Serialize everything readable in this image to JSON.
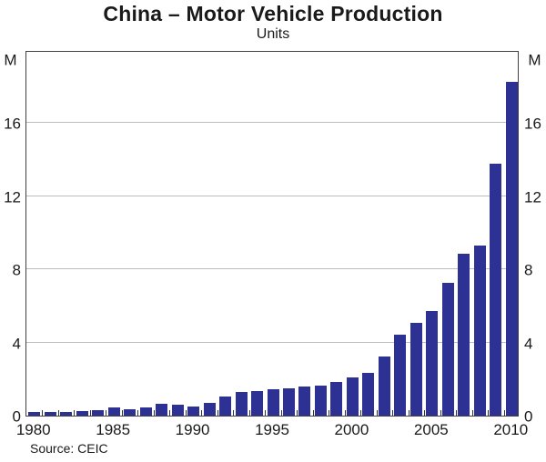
{
  "title": "China – Motor Vehicle Production",
  "subtitle": "Units",
  "source_note": "Source: CEIC",
  "colors": {
    "bar": "#2d3194",
    "grid": "#bcbcbc",
    "border": "#404040",
    "text": "#1a1a1a"
  },
  "chart_data": {
    "type": "bar",
    "title": "China – Motor Vehicle Production",
    "subtitle": "Units",
    "ylabel": "M",
    "ylabel_positions": [
      "top-left",
      "top-right"
    ],
    "ylim": [
      0,
      20
    ],
    "yticks": [
      0,
      4,
      8,
      12,
      16
    ],
    "grid": true,
    "legend": "none",
    "x": [
      1980,
      1981,
      1982,
      1983,
      1984,
      1985,
      1986,
      1987,
      1988,
      1989,
      1990,
      1991,
      1992,
      1993,
      1994,
      1995,
      1996,
      1997,
      1998,
      1999,
      2000,
      2001,
      2002,
      2003,
      2004,
      2005,
      2006,
      2007,
      2008,
      2009,
      2010
    ],
    "values": [
      0.22,
      0.18,
      0.2,
      0.24,
      0.32,
      0.44,
      0.37,
      0.47,
      0.65,
      0.58,
      0.51,
      0.71,
      1.06,
      1.3,
      1.35,
      1.45,
      1.47,
      1.58,
      1.63,
      1.83,
      2.07,
      2.33,
      3.25,
      4.44,
      5.07,
      5.71,
      7.28,
      8.88,
      9.3,
      13.79,
      18.26
    ],
    "xticks_labeled": [
      1980,
      1985,
      1990,
      1995,
      2000,
      2005,
      2010
    ],
    "source": "Source: CEIC"
  }
}
